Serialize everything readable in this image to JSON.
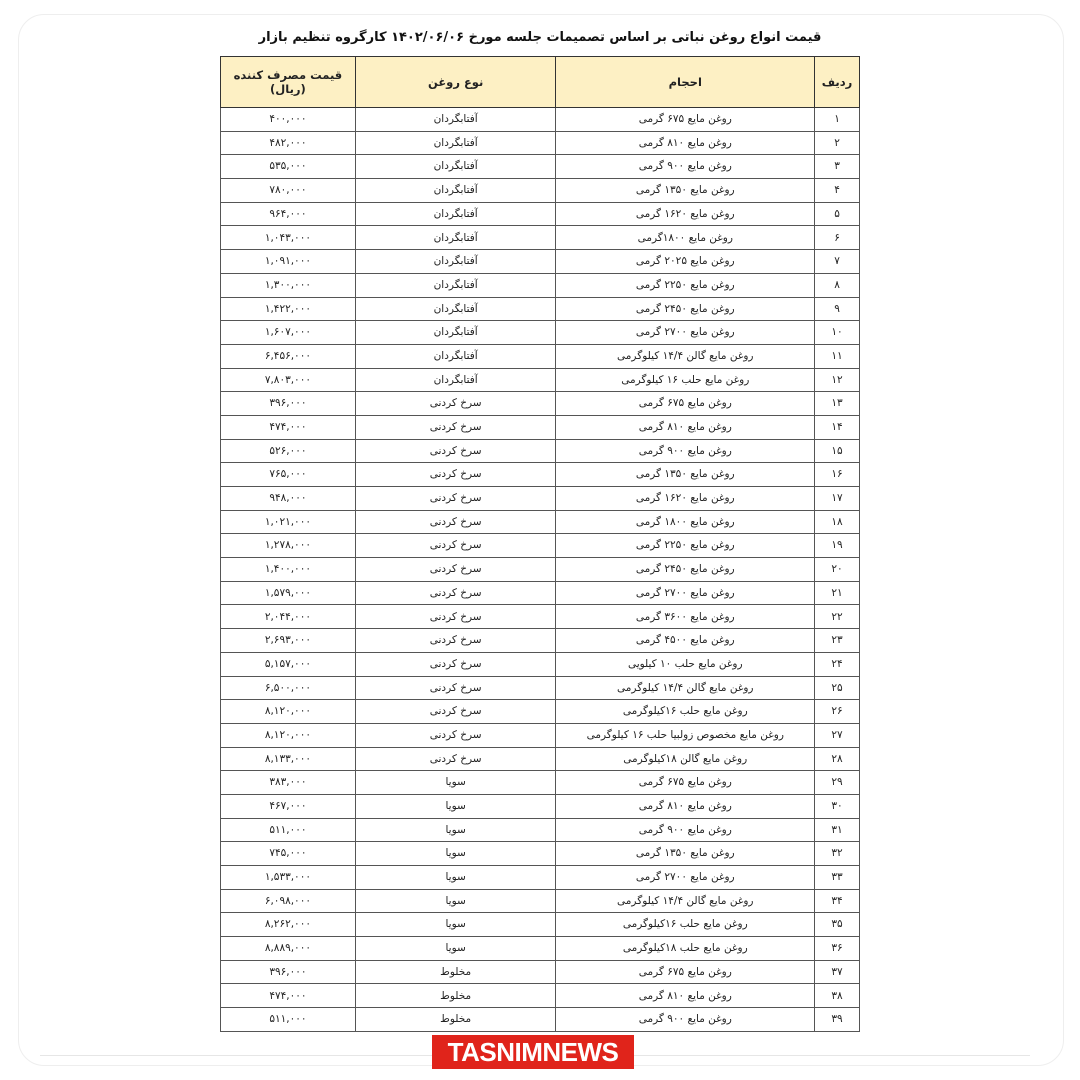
{
  "title": "قیمت انواع روغن نباتی بر اساس تصمیمات جلسه مورخ ۱۴۰۲/۰۶/۰۶ کارگروه تنظیم بازار",
  "columns": {
    "index": "ردیف",
    "volume": "احجام",
    "type": "نوع روغن",
    "price": "قیمت مصرف کننده (ریال)"
  },
  "header_color": "#fdf0c4",
  "rows": [
    [
      "۱",
      "روغن مایع ۶۷۵ گرمی",
      "آفتابگردان",
      "۴۰۰,۰۰۰"
    ],
    [
      "۲",
      "روغن مایع ۸۱۰ گرمی",
      "آفتابگردان",
      "۴۸۲,۰۰۰"
    ],
    [
      "۳",
      "روغن مایع ۹۰۰ گرمی",
      "آفتابگردان",
      "۵۳۵,۰۰۰"
    ],
    [
      "۴",
      "روغن مایع ۱۳۵۰ گرمی",
      "آفتابگردان",
      "۷۸۰,۰۰۰"
    ],
    [
      "۵",
      "روغن مایع ۱۶۲۰ گرمی",
      "آفتابگردان",
      "۹۶۴,۰۰۰"
    ],
    [
      "۶",
      "روغن مایع ۱۸۰۰گرمی",
      "آفتابگردان",
      "۱,۰۴۳,۰۰۰"
    ],
    [
      "۷",
      "روغن مایع ۲۰۲۵ گرمی",
      "آفتابگردان",
      "۱,۰۹۱,۰۰۰"
    ],
    [
      "۸",
      "روغن مایع ۲۲۵۰ گرمی",
      "آفتابگردان",
      "۱,۳۰۰,۰۰۰"
    ],
    [
      "۹",
      "روغن مایع ۲۴۵۰ گرمی",
      "آفتابگردان",
      "۱,۴۲۲,۰۰۰"
    ],
    [
      "۱۰",
      "روغن مایع ۲۷۰۰ گرمی",
      "آفتابگردان",
      "۱,۶۰۷,۰۰۰"
    ],
    [
      "۱۱",
      "روغن مایع گالن ۱۴/۴ کیلوگرمی",
      "آفتابگردان",
      "۶,۴۵۶,۰۰۰"
    ],
    [
      "۱۲",
      "روغن مایع حلب ۱۶ کیلوگرمی",
      "آفتابگردان",
      "۷,۸۰۳,۰۰۰"
    ],
    [
      "۱۳",
      "روغن مایع ۶۷۵ گرمی",
      "سرخ کردنی",
      "۳۹۶,۰۰۰"
    ],
    [
      "۱۴",
      "روغن مایع ۸۱۰ گرمی",
      "سرخ کردنی",
      "۴۷۴,۰۰۰"
    ],
    [
      "۱۵",
      "روغن مایع ۹۰۰ گرمی",
      "سرخ کردنی",
      "۵۲۶,۰۰۰"
    ],
    [
      "۱۶",
      "روغن مایع ۱۳۵۰ گرمی",
      "سرخ کردنی",
      "۷۶۵,۰۰۰"
    ],
    [
      "۱۷",
      "روغن مایع ۱۶۲۰ گرمی",
      "سرخ کردنی",
      "۹۴۸,۰۰۰"
    ],
    [
      "۱۸",
      "روغن مایع ۱۸۰۰ گرمی",
      "سرخ کردنی",
      "۱,۰۲۱,۰۰۰"
    ],
    [
      "۱۹",
      "روغن مایع ۲۲۵۰ گرمی",
      "سرخ کردنی",
      "۱,۲۷۸,۰۰۰"
    ],
    [
      "۲۰",
      "روغن مایع ۲۴۵۰ گرمی",
      "سرخ کردنی",
      "۱,۴۰۰,۰۰۰"
    ],
    [
      "۲۱",
      "روغن مایع ۲۷۰۰ گرمی",
      "سرخ کردنی",
      "۱,۵۷۹,۰۰۰"
    ],
    [
      "۲۲",
      "روغن مایع ۳۶۰۰ گرمی",
      "سرخ کردنی",
      "۲,۰۴۴,۰۰۰"
    ],
    [
      "۲۳",
      "روغن مایع ۴۵۰۰ گرمی",
      "سرخ کردنی",
      "۲,۶۹۳,۰۰۰"
    ],
    [
      "۲۴",
      "روغن مایع حلب ۱۰ کیلویی",
      "سرخ کردنی",
      "۵,۱۵۷,۰۰۰"
    ],
    [
      "۲۵",
      "روغن مایع گالن ۱۴/۴ کیلوگرمی",
      "سرخ کردنی",
      "۶,۵۰۰,۰۰۰"
    ],
    [
      "۲۶",
      "روغن مایع حلب ۱۶کیلوگرمی",
      "سرخ کردنی",
      "۸,۱۲۰,۰۰۰"
    ],
    [
      "۲۷",
      "روغن مایع مخصوص زولبیا حلب ۱۶ کیلوگرمی",
      "سرخ کردنی",
      "۸,۱۲۰,۰۰۰"
    ],
    [
      "۲۸",
      "روغن مایع گالن ۱۸کیلوگرمی",
      "سرخ کردنی",
      "۸,۱۳۳,۰۰۰"
    ],
    [
      "۲۹",
      "روغن مایع ۶۷۵ گرمی",
      "سویا",
      "۳۸۳,۰۰۰"
    ],
    [
      "۳۰",
      "روغن مایع ۸۱۰ گرمی",
      "سویا",
      "۴۶۷,۰۰۰"
    ],
    [
      "۳۱",
      "روغن مایع ۹۰۰ گرمی",
      "سویا",
      "۵۱۱,۰۰۰"
    ],
    [
      "۳۲",
      "روغن مایع ۱۳۵۰ گرمی",
      "سویا",
      "۷۴۵,۰۰۰"
    ],
    [
      "۳۳",
      "روغن مایع ۲۷۰۰ گرمی",
      "سویا",
      "۱,۵۳۳,۰۰۰"
    ],
    [
      "۳۴",
      "روغن مایع گالن ۱۴/۴ کیلوگرمی",
      "سویا",
      "۶,۰۹۸,۰۰۰"
    ],
    [
      "۳۵",
      "روغن مایع حلب ۱۶کیلوگرمی",
      "سویا",
      "۸,۲۶۲,۰۰۰"
    ],
    [
      "۳۶",
      "روغن مایع حلب ۱۸کیلوگرمی",
      "سویا",
      "۸,۸۸۹,۰۰۰"
    ],
    [
      "۳۷",
      "روغن مایع ۶۷۵ گرمی",
      "مخلوط",
      "۳۹۶,۰۰۰"
    ],
    [
      "۳۸",
      "روغن مایع ۸۱۰ گرمی",
      "مخلوط",
      "۴۷۴,۰۰۰"
    ],
    [
      "۳۹",
      "روغن مایع ۹۰۰ گرمی",
      "مخلوط",
      "۵۱۱,۰۰۰"
    ]
  ],
  "logo": {
    "text": "TASNIMNEWS",
    "color": "#e0241b"
  }
}
